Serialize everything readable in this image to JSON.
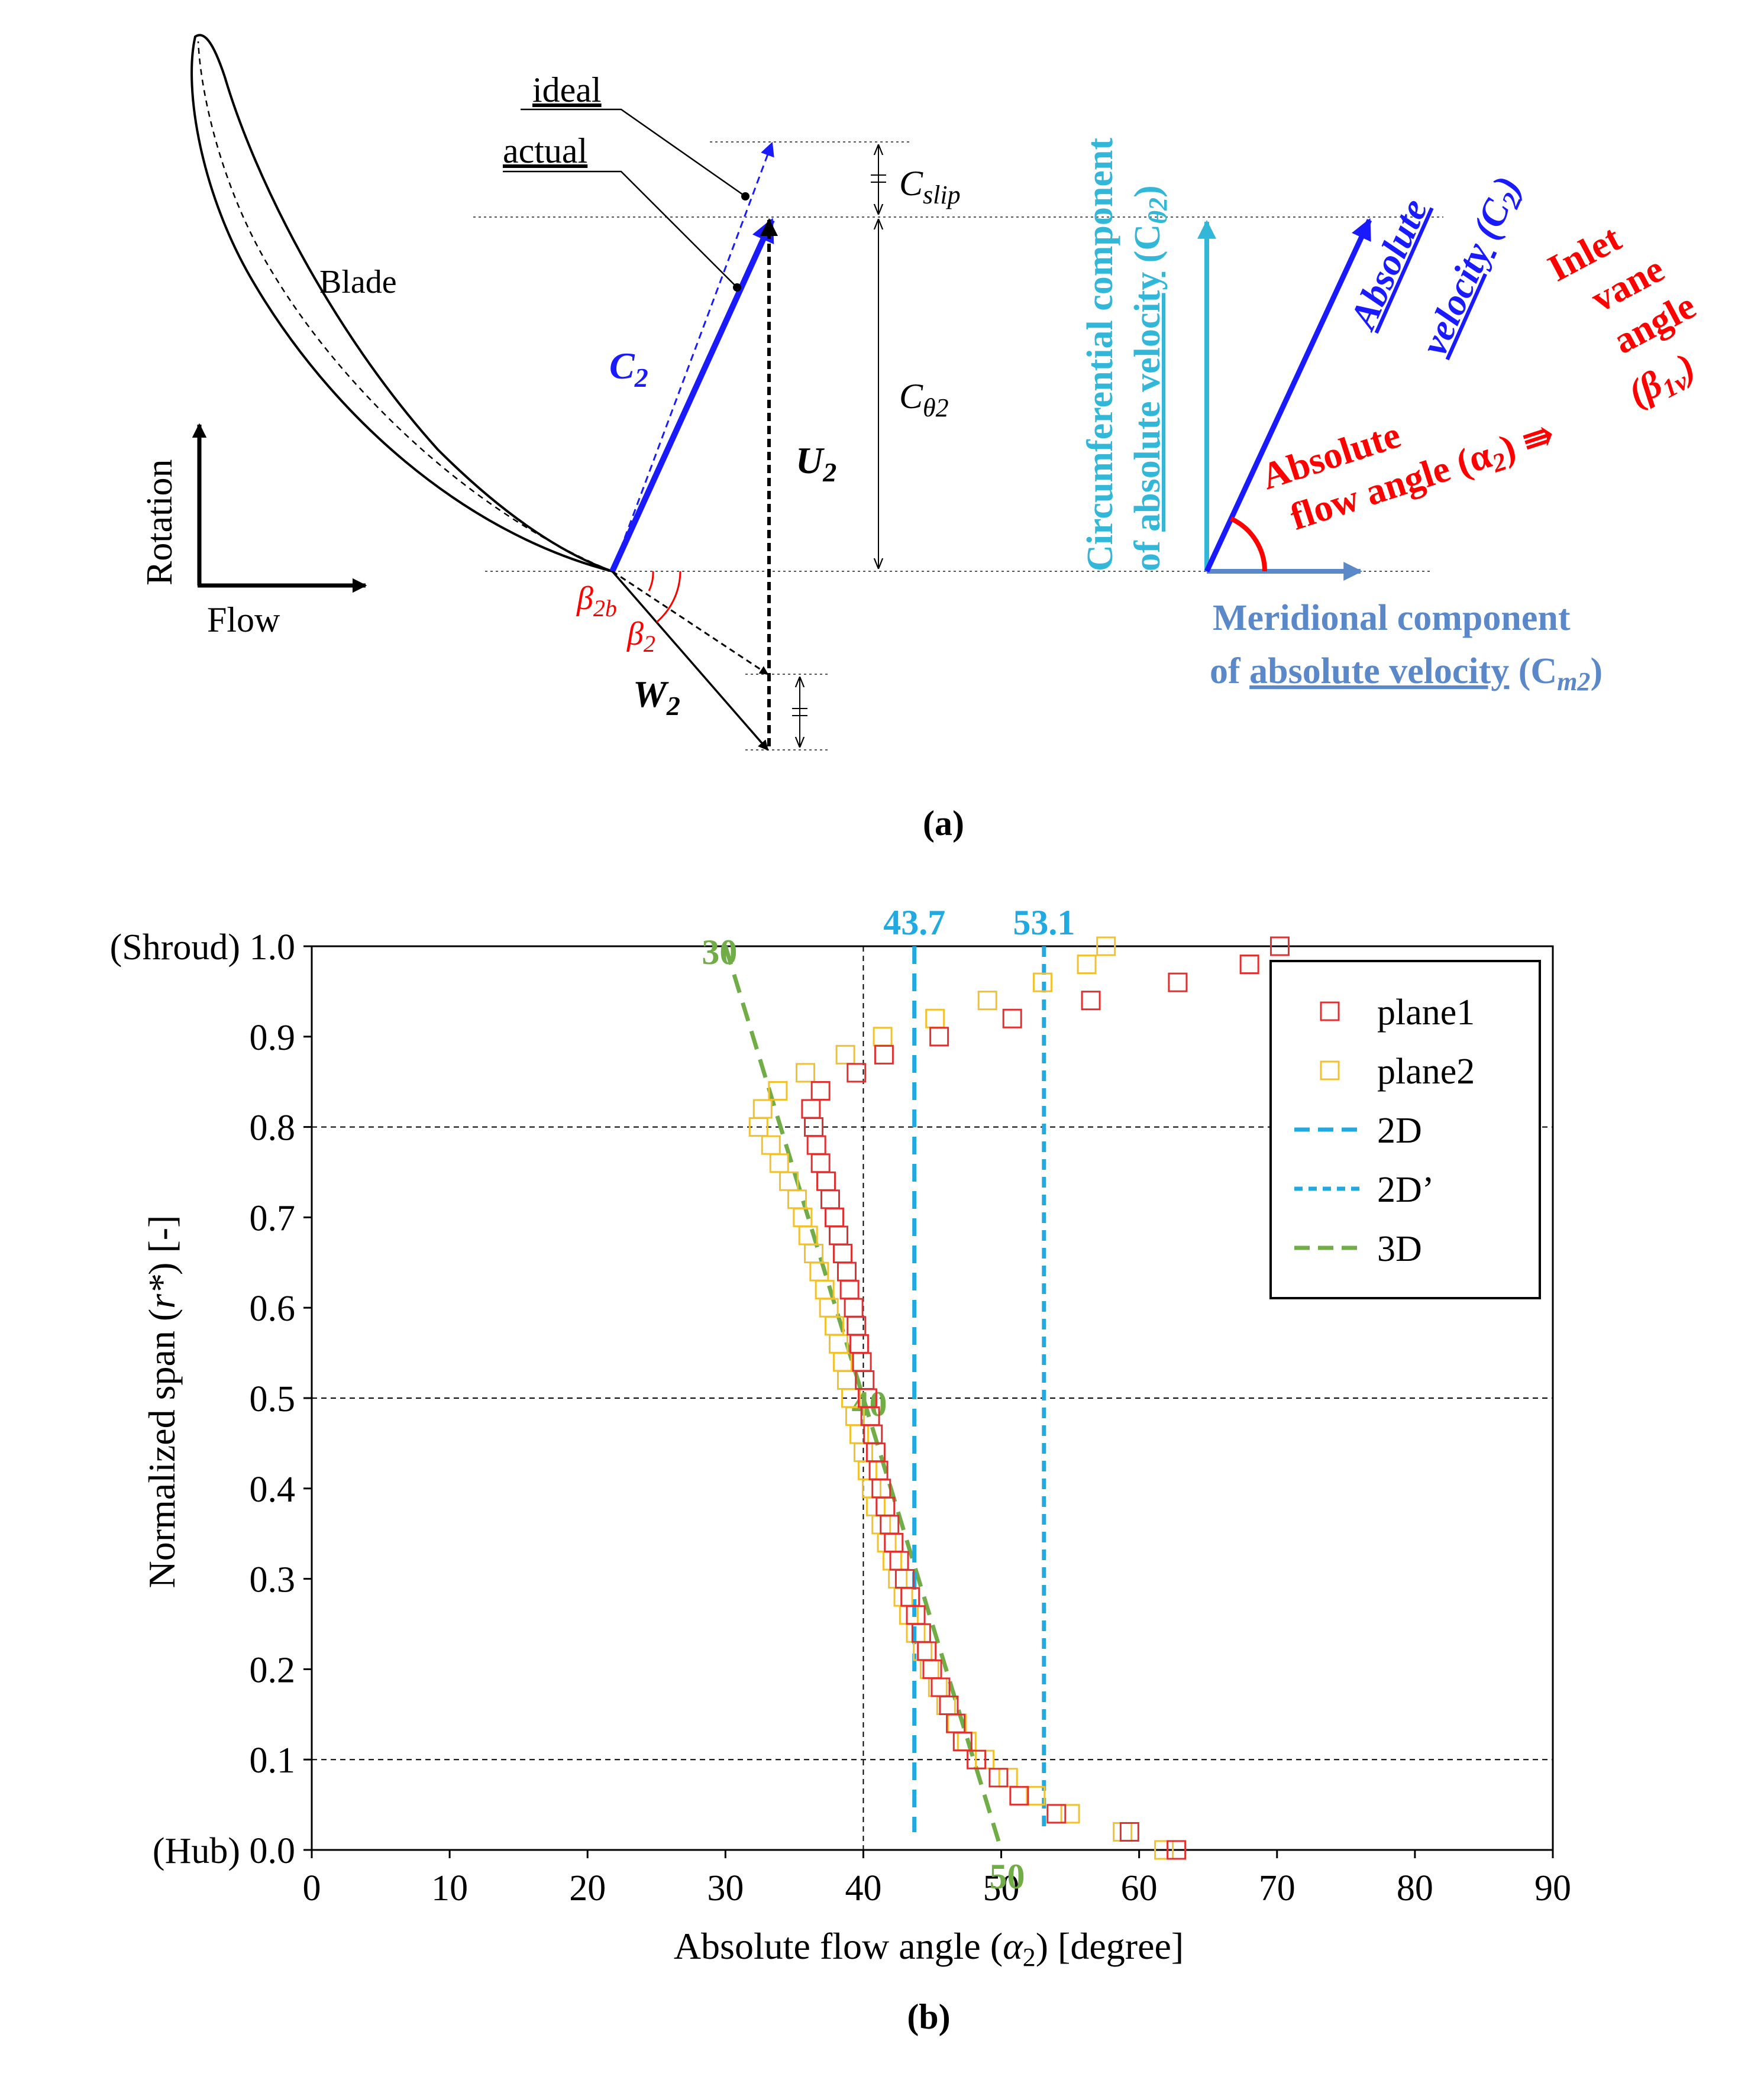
{
  "panel_a": {
    "label": "(a)",
    "blade_label": "Blade",
    "ideal_label": "ideal",
    "actual_label": "actual",
    "rotation_label": "Rotation",
    "flow_label": "Flow",
    "c2_label": "C",
    "c2_sub": "2",
    "u2_label": "U",
    "u2_sub": "2",
    "w2_label": "W",
    "w2_sub": "2",
    "cslip_label": "C",
    "cslip_sub": "slip",
    "ctheta_label": "C",
    "ctheta_sub": "θ2",
    "beta2b_label": "β",
    "beta2b_sub": "2b",
    "beta2_label": "β",
    "beta2_sub": "2",
    "circ_line1": "Circumferential component",
    "circ_line2_pre": "of ",
    "circ_line2_ul": "absolute velocity",
    "circ_line2_post": " (C",
    "circ_line2_sub": "θ2",
    "circ_line2_end": ")",
    "abs_vel_line1": "Absolute",
    "abs_vel_line2_ul": "velocity",
    "abs_vel_line2_post": " (C",
    "abs_vel_line2_sub": "2",
    "abs_vel_line2_end": ")",
    "inlet_line1": "Inlet",
    "inlet_line2": "vane",
    "inlet_line3": "angle",
    "inlet_line4_pre": "(β",
    "inlet_line4_sub": "1v",
    "inlet_line4_end": ")",
    "abs_flow_line1": "Absolute",
    "abs_flow_line2_pre": "flow angle (α",
    "abs_flow_line2_sub": "2",
    "abs_flow_line2_end": ") ⇛",
    "merid_line1": "Meridional component",
    "merid_line2_pre": "of ",
    "merid_line2_ul": "absolute velocity",
    "merid_line2_post": " (C",
    "merid_line2_sub": "m2",
    "merid_line2_end": ")",
    "colors": {
      "blue": "#1a1aff",
      "red": "#ff0000",
      "cyan": "#33b7d9",
      "steel": "#5a88c8",
      "black": "#000000"
    }
  },
  "panel_b": {
    "label": "(b)",
    "chart_data": {
      "type": "scatter",
      "xlabel_pre": "Absolute flow angle (",
      "xlabel_sym": "α",
      "xlabel_sub": "2",
      "xlabel_post": ") [degree]",
      "ylabel_pre": "Normalized span (",
      "ylabel_sym": "r*",
      "ylabel_post": ") [-]",
      "xlim": [
        0,
        90
      ],
      "ylim": [
        0,
        1
      ],
      "x_ticks": [
        "0",
        "10",
        "20",
        "30",
        "40",
        "50",
        "60",
        "70",
        "80",
        "90"
      ],
      "y_ticks": [
        "0.0",
        "0.1",
        "0.2",
        "0.3",
        "0.4",
        "0.5",
        "0.6",
        "0.7",
        "0.8",
        "0.9",
        "1.0"
      ],
      "y_tick_prefix_top": "(Shroud)",
      "y_tick_prefix_bottom": "(Hub)",
      "h_gridlines": [
        0.1,
        0.5,
        0.8
      ],
      "v_gridline": 40,
      "legend_position": "top-right",
      "legend": [
        {
          "name": "plane1",
          "color": "#e03030",
          "kind": "square"
        },
        {
          "name": "plane2",
          "color": "#f2c12e",
          "kind": "square"
        },
        {
          "name": "2D",
          "color": "#21a9e1",
          "kind": "dash-long"
        },
        {
          "name": "2D’",
          "color": "#21a9e1",
          "kind": "dash-short"
        },
        {
          "name": "3D",
          "color": "#70ad47",
          "kind": "dash-long"
        }
      ],
      "lines": [
        {
          "name": "2D",
          "x": 43.7,
          "label": "43.7",
          "color": "#21a9e1"
        },
        {
          "name": "2D’",
          "x": 53.1,
          "label": "53.1",
          "color": "#21a9e1"
        }
      ],
      "line_3d": {
        "name": "3D",
        "points": [
          [
            30,
            1.0
          ],
          [
            40,
            0.5
          ],
          [
            50,
            0.0
          ]
        ],
        "labels": [
          "30",
          "40",
          "50"
        ],
        "color": "#70ad47"
      },
      "series": [
        {
          "name": "plane1",
          "color": "#e03030",
          "points": [
            [
              62.7,
              0.0
            ],
            [
              59.3,
              0.02
            ],
            [
              54.0,
              0.04
            ],
            [
              51.3,
              0.06
            ],
            [
              49.8,
              0.08
            ],
            [
              48.2,
              0.1
            ],
            [
              47.2,
              0.12
            ],
            [
              46.7,
              0.14
            ],
            [
              46.2,
              0.16
            ],
            [
              45.6,
              0.18
            ],
            [
              45.0,
              0.2
            ],
            [
              44.6,
              0.22
            ],
            [
              44.2,
              0.24
            ],
            [
              43.8,
              0.26
            ],
            [
              43.4,
              0.28
            ],
            [
              43.0,
              0.3
            ],
            [
              42.6,
              0.32
            ],
            [
              42.2,
              0.34
            ],
            [
              41.9,
              0.36
            ],
            [
              41.6,
              0.38
            ],
            [
              41.3,
              0.4
            ],
            [
              41.1,
              0.42
            ],
            [
              40.9,
              0.44
            ],
            [
              40.7,
              0.46
            ],
            [
              40.5,
              0.48
            ],
            [
              40.3,
              0.5
            ],
            [
              40.1,
              0.52
            ],
            [
              39.9,
              0.54
            ],
            [
              39.7,
              0.56
            ],
            [
              39.5,
              0.58
            ],
            [
              39.3,
              0.6
            ],
            [
              39.0,
              0.62
            ],
            [
              38.8,
              0.64
            ],
            [
              38.5,
              0.66
            ],
            [
              38.2,
              0.68
            ],
            [
              37.9,
              0.7
            ],
            [
              37.6,
              0.72
            ],
            [
              37.3,
              0.74
            ],
            [
              36.9,
              0.76
            ],
            [
              36.6,
              0.78
            ],
            [
              36.4,
              0.8
            ],
            [
              36.2,
              0.82
            ],
            [
              36.9,
              0.84
            ],
            [
              39.5,
              0.86
            ],
            [
              41.5,
              0.88
            ],
            [
              45.5,
              0.9
            ],
            [
              50.8,
              0.92
            ],
            [
              56.5,
              0.94
            ],
            [
              62.8,
              0.96
            ],
            [
              68.0,
              0.98
            ],
            [
              70.2,
              1.0
            ]
          ]
        },
        {
          "name": "plane2",
          "color": "#f2c12e",
          "points": [
            [
              61.8,
              0.0
            ],
            [
              58.8,
              0.02
            ],
            [
              55.0,
              0.04
            ],
            [
              52.5,
              0.06
            ],
            [
              50.5,
              0.08
            ],
            [
              48.8,
              0.1
            ],
            [
              47.5,
              0.12
            ],
            [
              46.8,
              0.14
            ],
            [
              46.0,
              0.16
            ],
            [
              45.4,
              0.18
            ],
            [
              44.8,
              0.2
            ],
            [
              44.3,
              0.22
            ],
            [
              43.8,
              0.24
            ],
            [
              43.3,
              0.26
            ],
            [
              42.9,
              0.28
            ],
            [
              42.5,
              0.3
            ],
            [
              42.1,
              0.32
            ],
            [
              41.7,
              0.34
            ],
            [
              41.3,
              0.36
            ],
            [
              40.9,
              0.38
            ],
            [
              40.6,
              0.4
            ],
            [
              40.3,
              0.42
            ],
            [
              40.0,
              0.44
            ],
            [
              39.7,
              0.46
            ],
            [
              39.4,
              0.48
            ],
            [
              39.1,
              0.5
            ],
            [
              38.8,
              0.52
            ],
            [
              38.5,
              0.54
            ],
            [
              38.2,
              0.56
            ],
            [
              37.9,
              0.58
            ],
            [
              37.5,
              0.6
            ],
            [
              37.2,
              0.62
            ],
            [
              36.8,
              0.64
            ],
            [
              36.4,
              0.66
            ],
            [
              36.0,
              0.68
            ],
            [
              35.6,
              0.7
            ],
            [
              35.2,
              0.72
            ],
            [
              34.6,
              0.74
            ],
            [
              33.9,
              0.76
            ],
            [
              33.3,
              0.78
            ],
            [
              32.4,
              0.8
            ],
            [
              32.7,
              0.82
            ],
            [
              33.8,
              0.84
            ],
            [
              35.8,
              0.86
            ],
            [
              38.7,
              0.88
            ],
            [
              41.4,
              0.9
            ],
            [
              45.2,
              0.92
            ],
            [
              49.0,
              0.94
            ],
            [
              53.0,
              0.96
            ],
            [
              56.2,
              0.98
            ],
            [
              57.6,
              1.0
            ]
          ]
        }
      ]
    }
  }
}
